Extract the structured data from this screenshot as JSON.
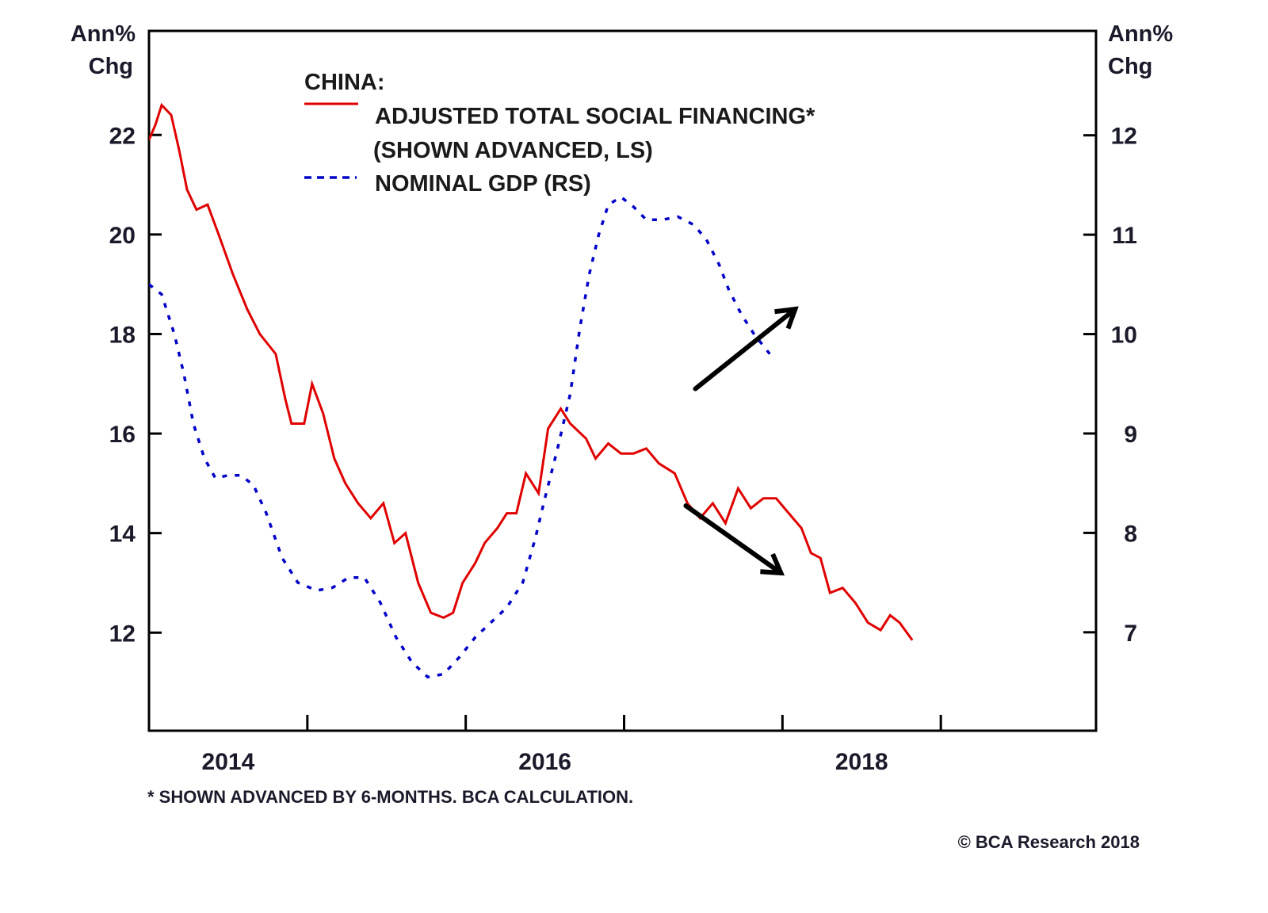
{
  "chart_data": {
    "type": "line",
    "title": "CHINA:",
    "left_axis": {
      "title_line1": "Ann%",
      "title_line2": "Chg",
      "ylim": [
        10.03,
        24.09
      ],
      "ticks": [
        12,
        14,
        16,
        18,
        20,
        22
      ]
    },
    "right_axis": {
      "title_line1": "Ann%",
      "title_line2": "Chg",
      "ylim": [
        6.01,
        13.05
      ],
      "ticks": [
        7,
        8,
        9,
        10,
        11,
        12
      ]
    },
    "x_axis": {
      "xlim": [
        2014.0,
        2019.98
      ],
      "tick_years": [
        2015,
        2016,
        2017,
        2018,
        2019
      ],
      "labels": [
        {
          "text": "2014",
          "at": 2014.5
        },
        {
          "text": "2016",
          "at": 2016.5
        },
        {
          "text": "2018",
          "at": 2018.5
        }
      ]
    },
    "legend": {
      "placement": "top-center",
      "entries": [
        {
          "label_line1": "ADJUSTED TOTAL SOCIAL FINANCING*",
          "label_line2": "(SHOWN ADVANCED, LS)",
          "style": "solid",
          "color": "#e00000"
        },
        {
          "label_line1": "NOMINAL GDP (RS)",
          "label_line2": "",
          "style": "dashed",
          "color": "#0000c8"
        }
      ]
    },
    "series": [
      {
        "name": "Adjusted Total Social Financing (shown advanced, LS)",
        "axis": "left",
        "color": "#e00000",
        "style": "solid",
        "points": [
          [
            2014.0,
            21.9
          ],
          [
            2014.04,
            22.2
          ],
          [
            2014.08,
            22.6
          ],
          [
            2014.14,
            22.4
          ],
          [
            2014.19,
            21.7
          ],
          [
            2014.24,
            20.9
          ],
          [
            2014.3,
            20.5
          ],
          [
            2014.37,
            20.6
          ],
          [
            2014.44,
            20.0
          ],
          [
            2014.53,
            19.2
          ],
          [
            2014.62,
            18.5
          ],
          [
            2014.7,
            18.0
          ],
          [
            2014.8,
            17.6
          ],
          [
            2014.86,
            16.7
          ],
          [
            2014.9,
            16.2
          ],
          [
            2014.98,
            16.2
          ],
          [
            2015.03,
            17.0
          ],
          [
            2015.1,
            16.4
          ],
          [
            2015.17,
            15.5
          ],
          [
            2015.24,
            15.0
          ],
          [
            2015.32,
            14.6
          ],
          [
            2015.4,
            14.3
          ],
          [
            2015.48,
            14.6
          ],
          [
            2015.55,
            13.8
          ],
          [
            2015.62,
            14.0
          ],
          [
            2015.7,
            13.0
          ],
          [
            2015.78,
            12.4
          ],
          [
            2015.86,
            12.3
          ],
          [
            2015.92,
            12.4
          ],
          [
            2015.98,
            13.0
          ],
          [
            2016.06,
            13.4
          ],
          [
            2016.12,
            13.8
          ],
          [
            2016.2,
            14.1
          ],
          [
            2016.26,
            14.4
          ],
          [
            2016.32,
            14.4
          ],
          [
            2016.38,
            15.2
          ],
          [
            2016.46,
            14.8
          ],
          [
            2016.52,
            16.1
          ],
          [
            2016.6,
            16.5
          ],
          [
            2016.66,
            16.2
          ],
          [
            2016.76,
            15.9
          ],
          [
            2016.82,
            15.5
          ],
          [
            2016.9,
            15.8
          ],
          [
            2016.98,
            15.6
          ],
          [
            2017.06,
            15.6
          ],
          [
            2017.14,
            15.7
          ],
          [
            2017.22,
            15.4
          ],
          [
            2017.32,
            15.2
          ],
          [
            2017.4,
            14.6
          ],
          [
            2017.48,
            14.3
          ],
          [
            2017.56,
            14.6
          ],
          [
            2017.64,
            14.2
          ],
          [
            2017.72,
            14.9
          ],
          [
            2017.8,
            14.5
          ],
          [
            2017.88,
            14.7
          ],
          [
            2017.96,
            14.7
          ],
          [
            2018.04,
            14.4
          ],
          [
            2018.12,
            14.1
          ],
          [
            2018.18,
            13.6
          ],
          [
            2018.24,
            13.5
          ],
          [
            2018.3,
            12.8
          ],
          [
            2018.38,
            12.9
          ],
          [
            2018.46,
            12.6
          ],
          [
            2018.54,
            12.2
          ],
          [
            2018.62,
            12.05
          ],
          [
            2018.68,
            12.35
          ],
          [
            2018.74,
            12.2
          ],
          [
            2018.82,
            11.85
          ]
        ]
      },
      {
        "name": "Nominal GDP (RS)",
        "axis": "right",
        "color": "#0000c8",
        "style": "dashed",
        "points": [
          [
            2014.0,
            10.5
          ],
          [
            2014.08,
            10.4
          ],
          [
            2014.16,
            10.0
          ],
          [
            2014.22,
            9.6
          ],
          [
            2014.28,
            9.1
          ],
          [
            2014.35,
            8.75
          ],
          [
            2014.42,
            8.55
          ],
          [
            2014.5,
            8.58
          ],
          [
            2014.58,
            8.58
          ],
          [
            2014.66,
            8.48
          ],
          [
            2014.74,
            8.2
          ],
          [
            2014.84,
            7.75
          ],
          [
            2014.94,
            7.5
          ],
          [
            2015.06,
            7.42
          ],
          [
            2015.16,
            7.45
          ],
          [
            2015.26,
            7.55
          ],
          [
            2015.36,
            7.55
          ],
          [
            2015.46,
            7.3
          ],
          [
            2015.56,
            6.95
          ],
          [
            2015.66,
            6.7
          ],
          [
            2015.76,
            6.55
          ],
          [
            2015.86,
            6.58
          ],
          [
            2015.96,
            6.75
          ],
          [
            2016.06,
            6.95
          ],
          [
            2016.16,
            7.1
          ],
          [
            2016.26,
            7.25
          ],
          [
            2016.36,
            7.5
          ],
          [
            2016.44,
            7.95
          ],
          [
            2016.5,
            8.35
          ],
          [
            2016.58,
            8.85
          ],
          [
            2016.66,
            9.4
          ],
          [
            2016.72,
            10.05
          ],
          [
            2016.78,
            10.6
          ],
          [
            2016.84,
            11.0
          ],
          [
            2016.9,
            11.3
          ],
          [
            2016.98,
            11.38
          ],
          [
            2017.06,
            11.28
          ],
          [
            2017.14,
            11.15
          ],
          [
            2017.24,
            11.15
          ],
          [
            2017.34,
            11.18
          ],
          [
            2017.44,
            11.1
          ],
          [
            2017.52,
            10.95
          ],
          [
            2017.6,
            10.7
          ],
          [
            2017.66,
            10.45
          ],
          [
            2017.74,
            10.2
          ],
          [
            2017.82,
            10.0
          ],
          [
            2017.92,
            9.8
          ]
        ]
      }
    ],
    "annotations": [
      {
        "type": "arrow",
        "direction": "up-right",
        "from": [
          2017.45,
          16.9
        ],
        "to": [
          2018.08,
          18.5
        ]
      },
      {
        "type": "arrow",
        "direction": "down-right",
        "from": [
          2017.39,
          14.55
        ],
        "to": [
          2017.99,
          13.2
        ]
      }
    ],
    "footnote": "* SHOWN ADVANCED BY 6-MONTHS. BCA CALCULATION.",
    "source": "© BCA Research 2018",
    "grid": false
  }
}
